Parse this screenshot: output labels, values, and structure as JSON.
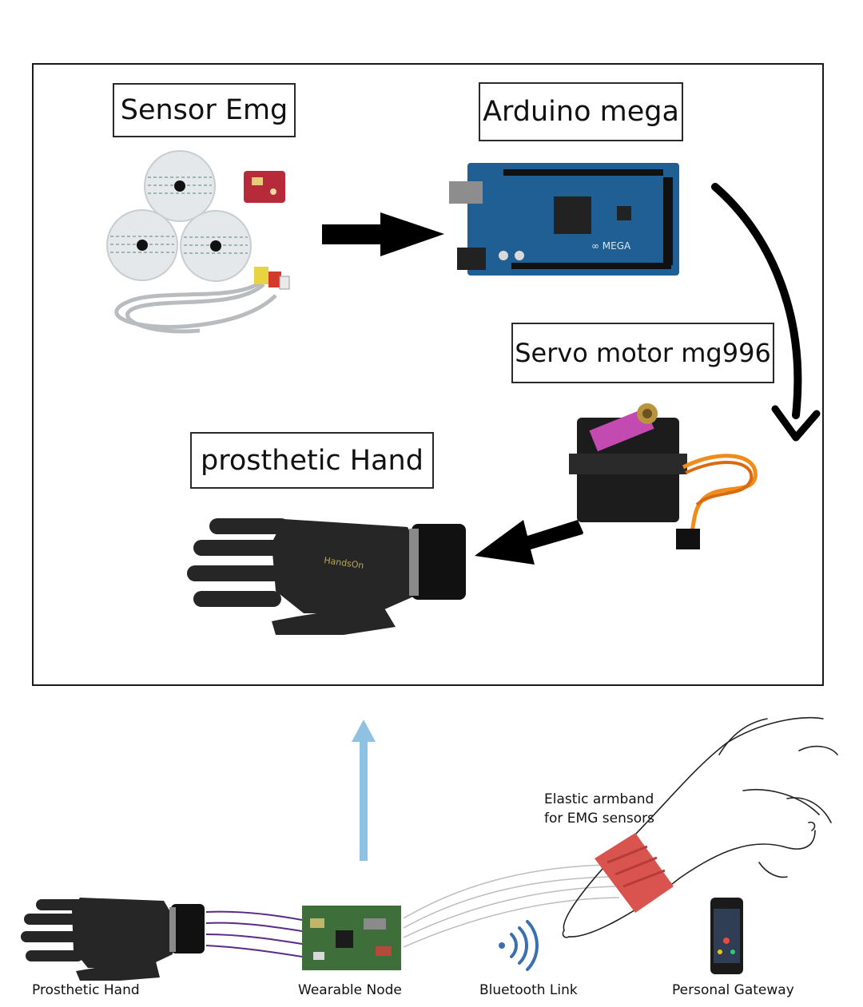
{
  "top_panel": {
    "sensor_label": "Sensor Emg",
    "arduino_label": "Arduino mega",
    "servo_label": "Servo motor mg996",
    "hand_label": "prosthetic Hand"
  },
  "bottom_panel": {
    "armband_label_line1": "Elastic armband",
    "armband_label_line2": "for EMG sensors",
    "captions": {
      "prosthetic_hand": "Prosthetic Hand",
      "wearable_node": "Wearable Node",
      "bluetooth_link": "Bluetooth Link",
      "personal_gateway": "Personal Gateway"
    }
  },
  "colors": {
    "arduino_board": "#1f5f94",
    "servo_body": "#1c1c1c",
    "servo_sticker": "#c24ab0",
    "armband": "#d9534f",
    "up_arrow": "#8fc1e3",
    "wire": "#5b2a86",
    "bluetooth": "#3a6fb0"
  },
  "icons": [
    "emg-electrode-icon",
    "emg-sensor-board-icon",
    "cable-icon",
    "arduino-board-icon",
    "servo-motor-icon",
    "prosthetic-hand-icon",
    "wearable-node-icon",
    "bluetooth-icon",
    "smartphone-icon",
    "arm-sketch-icon"
  ]
}
